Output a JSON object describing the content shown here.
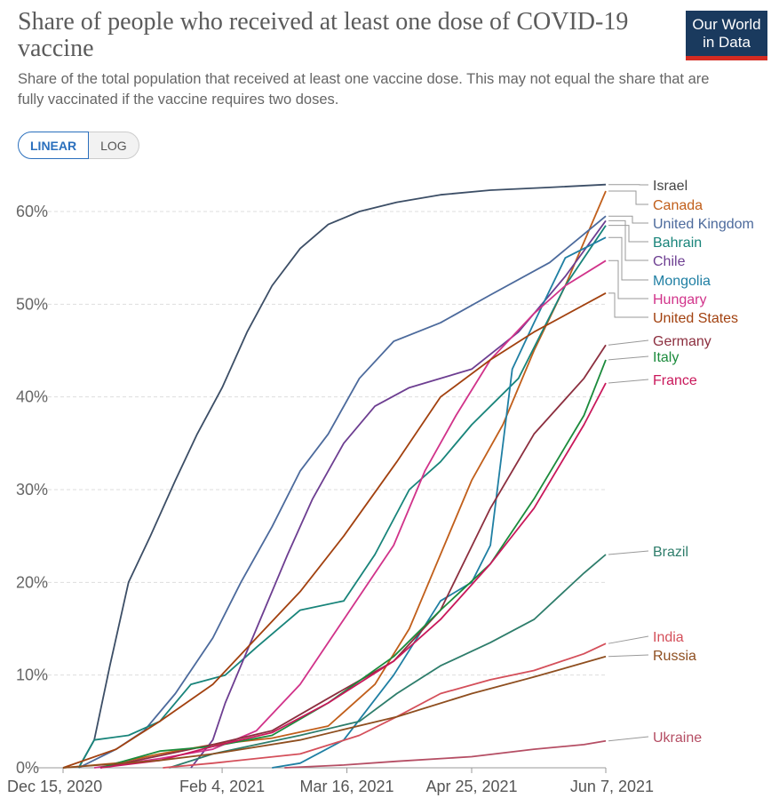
{
  "header": {
    "title": "Share of people who received at least one dose of COVID-19 vaccine",
    "subtitle": "Share of the total population that received at least one vaccine dose. This may not equal the share that are fully vaccinated if the vaccine requires two doses.",
    "logo_line1": "Our World",
    "logo_line2": "in Data"
  },
  "controls": {
    "linear_label": "LINEAR",
    "log_label": "LOG",
    "active": "linear"
  },
  "colors": {
    "grid": "#dddddd",
    "axis": "#666666",
    "logo_bg": "#1a3a5e",
    "logo_bar": "#d42b21",
    "active_toggle": "#2a6fbd"
  },
  "chart_data": {
    "type": "line",
    "x_axis": {
      "type": "date",
      "range": [
        "2020-12-15",
        "2021-06-07"
      ],
      "tick_labels": [
        "Dec 15, 2020",
        "Feb 4, 2021",
        "Mar 16, 2021",
        "Apr 25, 2021",
        "Jun 7, 2021"
      ],
      "tick_dates": [
        "2020-12-15",
        "2021-02-04",
        "2021-03-16",
        "2021-04-25",
        "2021-06-07"
      ]
    },
    "y_axis": {
      "range": [
        0,
        62
      ],
      "tick_values": [
        0,
        10,
        20,
        30,
        40,
        50,
        60
      ],
      "tick_labels": [
        "0%",
        "10%",
        "20%",
        "30%",
        "40%",
        "50%",
        "60%"
      ],
      "unit": "%"
    },
    "grid": "horizontal dashed",
    "legend": "right (inline labels at line ends)",
    "series": [
      {
        "name": "Israel",
        "color": "#3c4e66",
        "points": [
          [
            "2020-12-20",
            0
          ],
          [
            "2020-12-25",
            3
          ],
          [
            "2020-12-30",
            11
          ],
          [
            "2021-01-05",
            20
          ],
          [
            "2021-01-12",
            25
          ],
          [
            "2021-01-20",
            31
          ],
          [
            "2021-01-27",
            36
          ],
          [
            "2021-02-04",
            41
          ],
          [
            "2021-02-12",
            47
          ],
          [
            "2021-02-20",
            52
          ],
          [
            "2021-03-01",
            56
          ],
          [
            "2021-03-10",
            58.6
          ],
          [
            "2021-03-20",
            60
          ],
          [
            "2021-04-01",
            61
          ],
          [
            "2021-04-15",
            61.8
          ],
          [
            "2021-05-01",
            62.3
          ],
          [
            "2021-05-20",
            62.6
          ],
          [
            "2021-06-07",
            62.9
          ]
        ]
      },
      {
        "name": "Canada",
        "color": "#c15f1b",
        "points": [
          [
            "2020-12-15",
            0
          ],
          [
            "2021-01-01",
            0.5
          ],
          [
            "2021-01-15",
            1.5
          ],
          [
            "2021-02-01",
            2.5
          ],
          [
            "2021-02-20",
            3.2
          ],
          [
            "2021-03-10",
            4.5
          ],
          [
            "2021-03-25",
            9
          ],
          [
            "2021-04-05",
            15
          ],
          [
            "2021-04-15",
            23
          ],
          [
            "2021-04-25",
            31
          ],
          [
            "2021-05-05",
            37
          ],
          [
            "2021-05-15",
            45
          ],
          [
            "2021-05-25",
            52
          ],
          [
            "2021-06-07",
            62.2
          ]
        ]
      },
      {
        "name": "United Kingdom",
        "color": "#4c6a9c",
        "points": [
          [
            "2020-12-20",
            0
          ],
          [
            "2021-01-01",
            2
          ],
          [
            "2021-01-10",
            4
          ],
          [
            "2021-01-20",
            8
          ],
          [
            "2021-02-01",
            14
          ],
          [
            "2021-02-10",
            20
          ],
          [
            "2021-02-20",
            26
          ],
          [
            "2021-03-01",
            32
          ],
          [
            "2021-03-10",
            36
          ],
          [
            "2021-03-20",
            42
          ],
          [
            "2021-03-31",
            46
          ],
          [
            "2021-04-15",
            48
          ],
          [
            "2021-05-01",
            51
          ],
          [
            "2021-05-20",
            54.5
          ],
          [
            "2021-06-07",
            59.5
          ]
        ]
      },
      {
        "name": "Bahrain",
        "color": "#18847a",
        "points": [
          [
            "2020-12-20",
            0
          ],
          [
            "2020-12-25",
            3
          ],
          [
            "2021-01-05",
            3.5
          ],
          [
            "2021-01-15",
            5
          ],
          [
            "2021-01-25",
            9
          ],
          [
            "2021-02-05",
            10
          ],
          [
            "2021-02-15",
            13
          ],
          [
            "2021-03-01",
            17
          ],
          [
            "2021-03-15",
            18
          ],
          [
            "2021-03-25",
            23
          ],
          [
            "2021-04-05",
            30
          ],
          [
            "2021-04-15",
            33
          ],
          [
            "2021-04-25",
            37
          ],
          [
            "2021-05-10",
            42
          ],
          [
            "2021-05-25",
            52
          ],
          [
            "2021-06-07",
            58.5
          ]
        ]
      },
      {
        "name": "Chile",
        "color": "#6d3e91",
        "points": [
          [
            "2021-01-25",
            0
          ],
          [
            "2021-02-01",
            3
          ],
          [
            "2021-02-05",
            7
          ],
          [
            "2021-02-15",
            15
          ],
          [
            "2021-02-25",
            23
          ],
          [
            "2021-03-05",
            29
          ],
          [
            "2021-03-15",
            35
          ],
          [
            "2021-03-25",
            39
          ],
          [
            "2021-04-05",
            41
          ],
          [
            "2021-04-25",
            43
          ],
          [
            "2021-05-10",
            47
          ],
          [
            "2021-05-25",
            53
          ],
          [
            "2021-06-07",
            59
          ]
        ]
      },
      {
        "name": "Mongolia",
        "color": "#1f7fa3",
        "points": [
          [
            "2021-02-20",
            0
          ],
          [
            "2021-03-01",
            0.5
          ],
          [
            "2021-03-15",
            3
          ],
          [
            "2021-03-31",
            10
          ],
          [
            "2021-04-15",
            18
          ],
          [
            "2021-04-25",
            20
          ],
          [
            "2021-05-01",
            24
          ],
          [
            "2021-05-08",
            43
          ],
          [
            "2021-05-15",
            48
          ],
          [
            "2021-05-25",
            55
          ],
          [
            "2021-06-07",
            57.2
          ]
        ]
      },
      {
        "name": "Hungary",
        "color": "#d1338a",
        "points": [
          [
            "2020-12-25",
            0
          ],
          [
            "2021-01-15",
            1
          ],
          [
            "2021-02-01",
            2
          ],
          [
            "2021-02-15",
            4
          ],
          [
            "2021-03-01",
            9
          ],
          [
            "2021-03-15",
            16
          ],
          [
            "2021-03-31",
            24
          ],
          [
            "2021-04-10",
            32
          ],
          [
            "2021-04-20",
            38
          ],
          [
            "2021-05-01",
            44
          ],
          [
            "2021-05-15",
            49
          ],
          [
            "2021-05-25",
            52
          ],
          [
            "2021-06-07",
            54.7
          ]
        ]
      },
      {
        "name": "United States",
        "color": "#a2410f",
        "points": [
          [
            "2020-12-15",
            0
          ],
          [
            "2021-01-01",
            2
          ],
          [
            "2021-01-15",
            5
          ],
          [
            "2021-02-01",
            9
          ],
          [
            "2021-02-15",
            14
          ],
          [
            "2021-03-01",
            19
          ],
          [
            "2021-03-15",
            25
          ],
          [
            "2021-04-01",
            33
          ],
          [
            "2021-04-15",
            40
          ],
          [
            "2021-05-01",
            44
          ],
          [
            "2021-05-15",
            47
          ],
          [
            "2021-06-07",
            51.2
          ]
        ]
      },
      {
        "name": "Germany",
        "color": "#8c2f3f",
        "points": [
          [
            "2020-12-27",
            0
          ],
          [
            "2021-01-15",
            1.3
          ],
          [
            "2021-02-01",
            2.5
          ],
          [
            "2021-02-20",
            4
          ],
          [
            "2021-03-10",
            7.5
          ],
          [
            "2021-03-31",
            11.5
          ],
          [
            "2021-04-15",
            17
          ],
          [
            "2021-05-01",
            28
          ],
          [
            "2021-05-15",
            36
          ],
          [
            "2021-05-31",
            42
          ],
          [
            "2021-06-07",
            45.6
          ]
        ]
      },
      {
        "name": "Italy",
        "color": "#1b8b3c",
        "points": [
          [
            "2020-12-27",
            0
          ],
          [
            "2021-01-15",
            1.8
          ],
          [
            "2021-02-01",
            2.3
          ],
          [
            "2021-02-20",
            3.5
          ],
          [
            "2021-03-10",
            7
          ],
          [
            "2021-03-31",
            12
          ],
          [
            "2021-04-15",
            17
          ],
          [
            "2021-05-01",
            22
          ],
          [
            "2021-05-15",
            29
          ],
          [
            "2021-05-31",
            38
          ],
          [
            "2021-06-07",
            44
          ]
        ]
      },
      {
        "name": "France",
        "color": "#c9185b",
        "points": [
          [
            "2020-12-27",
            0
          ],
          [
            "2021-01-15",
            0.8
          ],
          [
            "2021-02-01",
            2.3
          ],
          [
            "2021-02-20",
            3.8
          ],
          [
            "2021-03-10",
            7
          ],
          [
            "2021-03-31",
            11.5
          ],
          [
            "2021-04-15",
            16
          ],
          [
            "2021-05-01",
            22
          ],
          [
            "2021-05-15",
            28
          ],
          [
            "2021-05-31",
            37
          ],
          [
            "2021-06-07",
            41.5
          ]
        ]
      },
      {
        "name": "Brazil",
        "color": "#2e7d6b",
        "points": [
          [
            "2021-01-18",
            0
          ],
          [
            "2021-02-01",
            1.5
          ],
          [
            "2021-02-15",
            2.5
          ],
          [
            "2021-03-01",
            3.5
          ],
          [
            "2021-03-20",
            5
          ],
          [
            "2021-04-01",
            8
          ],
          [
            "2021-04-15",
            11
          ],
          [
            "2021-05-01",
            13.5
          ],
          [
            "2021-05-15",
            16
          ],
          [
            "2021-05-31",
            21
          ],
          [
            "2021-06-07",
            23
          ]
        ]
      },
      {
        "name": "India",
        "color": "#d44f5a",
        "points": [
          [
            "2021-01-16",
            0
          ],
          [
            "2021-02-01",
            0.5
          ],
          [
            "2021-03-01",
            1.5
          ],
          [
            "2021-03-20",
            3.5
          ],
          [
            "2021-04-01",
            5.5
          ],
          [
            "2021-04-15",
            8
          ],
          [
            "2021-05-01",
            9.5
          ],
          [
            "2021-05-15",
            10.5
          ],
          [
            "2021-05-31",
            12.3
          ],
          [
            "2021-06-07",
            13.4
          ]
        ]
      },
      {
        "name": "Russia",
        "color": "#8e4e1f",
        "points": [
          [
            "2020-12-15",
            0
          ],
          [
            "2021-01-15",
            0.8
          ],
          [
            "2021-02-01",
            1.5
          ],
          [
            "2021-03-01",
            3
          ],
          [
            "2021-04-01",
            5.5
          ],
          [
            "2021-04-25",
            8
          ],
          [
            "2021-05-15",
            9.8
          ],
          [
            "2021-06-07",
            12
          ]
        ]
      },
      {
        "name": "Ukraine",
        "color": "#b54e64",
        "points": [
          [
            "2021-02-24",
            0
          ],
          [
            "2021-03-15",
            0.3
          ],
          [
            "2021-04-01",
            0.7
          ],
          [
            "2021-04-25",
            1.2
          ],
          [
            "2021-05-15",
            2
          ],
          [
            "2021-05-31",
            2.5
          ],
          [
            "2021-06-07",
            2.9
          ]
        ]
      }
    ]
  }
}
